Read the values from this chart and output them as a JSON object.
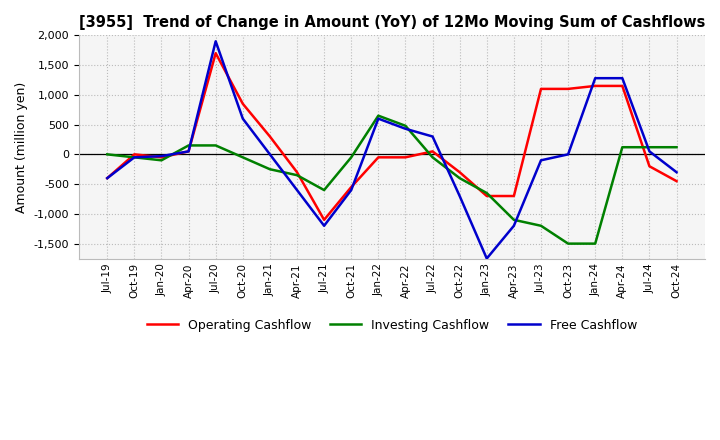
{
  "title": "[3955]  Trend of Change in Amount (YoY) of 12Mo Moving Sum of Cashflows",
  "ylabel": "Amount (million yen)",
  "x_labels": [
    "Jul-19",
    "Oct-19",
    "Jan-20",
    "Apr-20",
    "Jul-20",
    "Oct-20",
    "Jan-21",
    "Apr-21",
    "Jul-21",
    "Oct-21",
    "Jan-22",
    "Apr-22",
    "Jul-22",
    "Oct-22",
    "Jan-23",
    "Apr-23",
    "Jul-23",
    "Oct-23",
    "Jan-24",
    "Apr-24",
    "Jul-24",
    "Oct-24"
  ],
  "operating": [
    -400,
    0,
    -50,
    50,
    1700,
    850,
    300,
    -300,
    -1100,
    -550,
    -50,
    -50,
    50,
    -300,
    -700,
    -700,
    1100,
    1100,
    1150,
    1150,
    -200,
    -450
  ],
  "investing": [
    0,
    -50,
    -100,
    150,
    150,
    -50,
    -250,
    -350,
    -600,
    -50,
    650,
    480,
    -50,
    -400,
    -650,
    -1100,
    -1200,
    -1500,
    -1500,
    120,
    120,
    120
  ],
  "free": [
    -400,
    -50,
    -30,
    50,
    1900,
    600,
    0,
    -600,
    -1200,
    -600,
    600,
    430,
    300,
    -700,
    -1750,
    -1200,
    -100,
    0,
    1280,
    1280,
    50,
    -300
  ],
  "ylim": [
    -1750,
    2000
  ],
  "yticks": [
    -1500,
    -1000,
    -500,
    0,
    500,
    1000,
    1500,
    2000
  ],
  "operating_color": "#ff0000",
  "investing_color": "#008000",
  "free_color": "#0000cc",
  "bg_color": "#ffffff",
  "plot_bg_color": "#f5f5f5",
  "grid_color": "#bbbbbb",
  "linewidth": 1.8
}
